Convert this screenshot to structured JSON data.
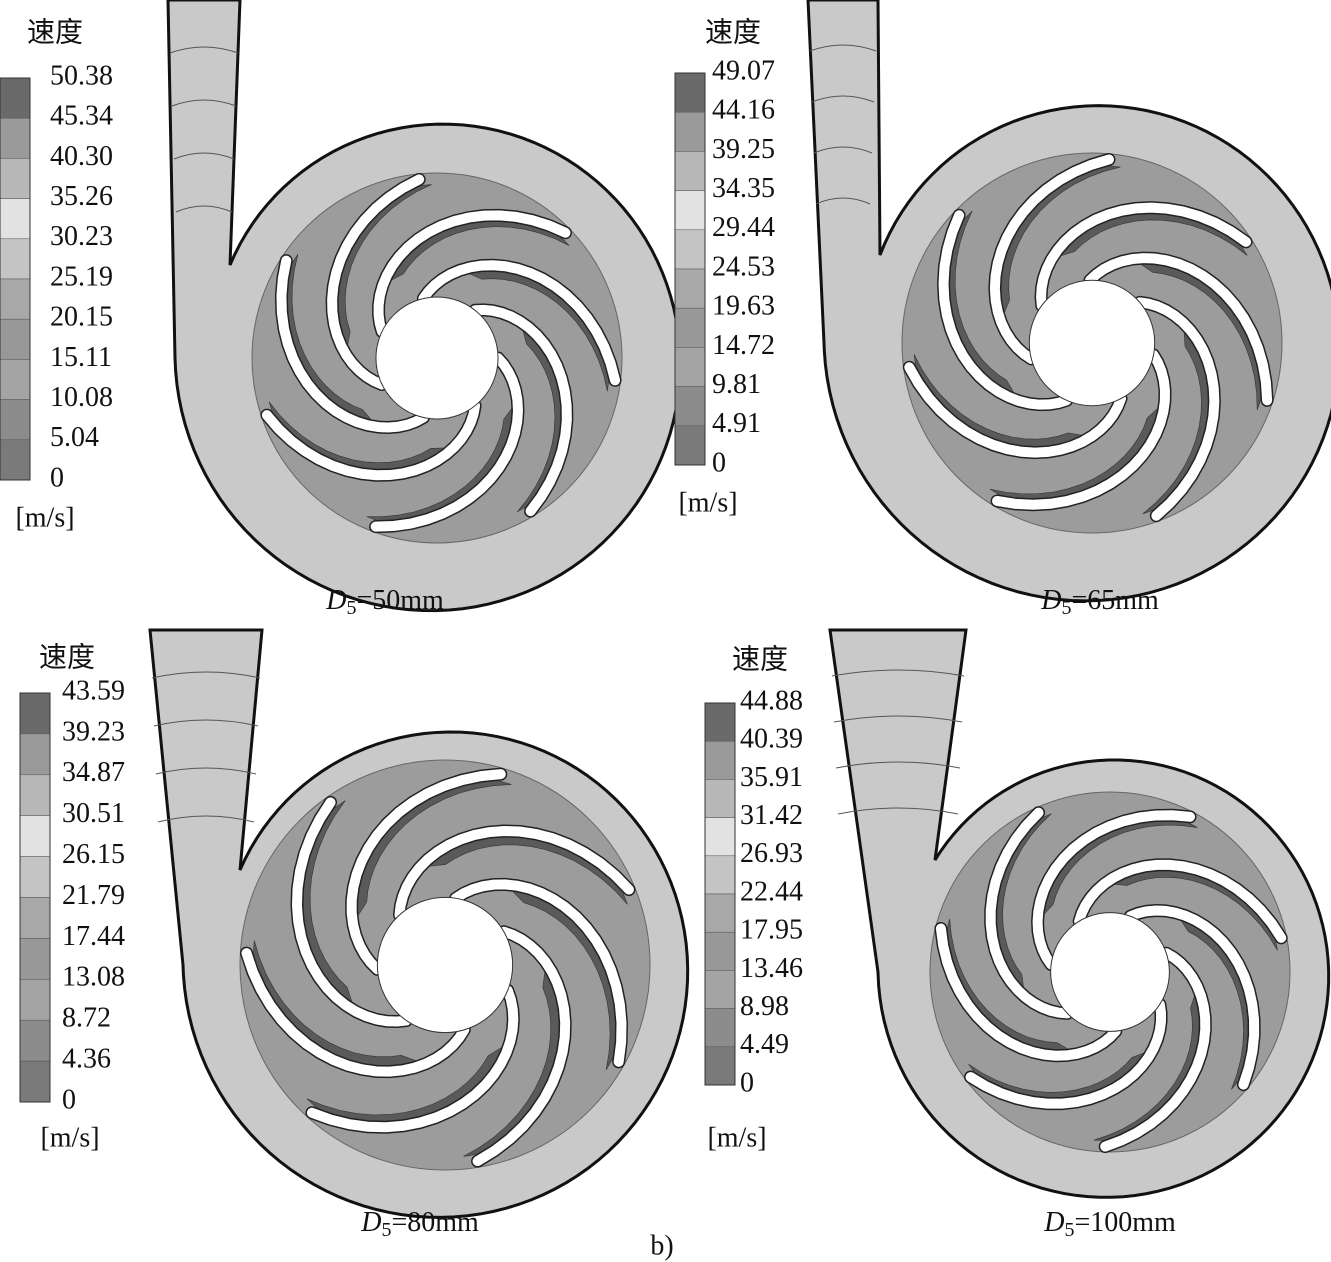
{
  "panels": [
    {
      "legend_title": "速度",
      "levels": [
        "50.38",
        "45.34",
        "40.30",
        "35.26",
        "30.23",
        "25.19",
        "20.15",
        "15.11",
        "10.08",
        "5.04",
        "0"
      ],
      "unit": "[m/s]",
      "caption": {
        "symbol": "D",
        "subscript": "5",
        "text": "=50mm"
      }
    },
    {
      "legend_title": "速度",
      "levels": [
        "49.07",
        "44.16",
        "39.25",
        "34.35",
        "29.44",
        "24.53",
        "19.63",
        "14.72",
        "9.81",
        "4.91",
        "0"
      ],
      "unit": "[m/s]",
      "caption": {
        "symbol": "D",
        "subscript": "5",
        "text": "=65mm"
      }
    },
    {
      "legend_title": "速度",
      "levels": [
        "43.59",
        "39.23",
        "34.87",
        "30.51",
        "26.15",
        "21.79",
        "17.44",
        "13.08",
        "8.72",
        "4.36",
        "0"
      ],
      "unit": "[m/s]",
      "caption": {
        "symbol": "D",
        "subscript": "5",
        "text": "=80mm"
      }
    },
    {
      "legend_title": "速度",
      "levels": [
        "44.88",
        "40.39",
        "35.91",
        "31.42",
        "26.93",
        "22.44",
        "17.95",
        "13.46",
        "8.98",
        "4.49",
        "0"
      ],
      "unit": "[m/s]",
      "caption": {
        "symbol": "D",
        "subscript": "5",
        "text": "=100mm"
      }
    }
  ],
  "figure_label": "b)"
}
